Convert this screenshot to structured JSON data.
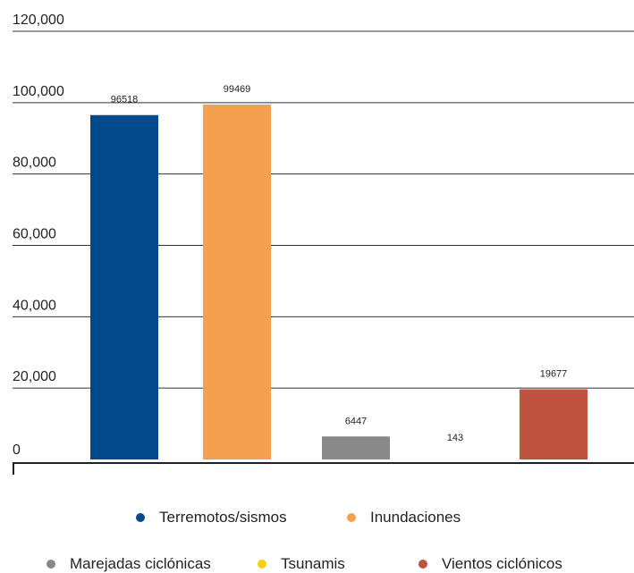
{
  "chart_data": {
    "type": "bar",
    "categories": [
      "Terremotos/sismos",
      "Inundaciones",
      "Marejadas ciclónicas",
      "Tsunamis",
      "Vientos ciclónicos"
    ],
    "values": [
      96518,
      99469,
      6447,
      143,
      19677
    ],
    "data_labels": [
      "96518",
      "99469",
      "6447",
      "143",
      "19677"
    ],
    "colors": [
      "#004a8b",
      "#f5a04f",
      "#888888",
      "#f2d31c",
      "#c0523f"
    ],
    "ylim": [
      0,
      120000
    ],
    "y_ticks": [
      0,
      20000,
      40000,
      60000,
      80000,
      100000,
      120000
    ],
    "y_tick_labels": [
      "0",
      "20,000",
      "40,000",
      "60,000",
      "80,000",
      "100,000",
      "120,000"
    ],
    "grid": true,
    "legend_position": "bottom",
    "title": "",
    "xlabel": "",
    "ylabel": ""
  }
}
